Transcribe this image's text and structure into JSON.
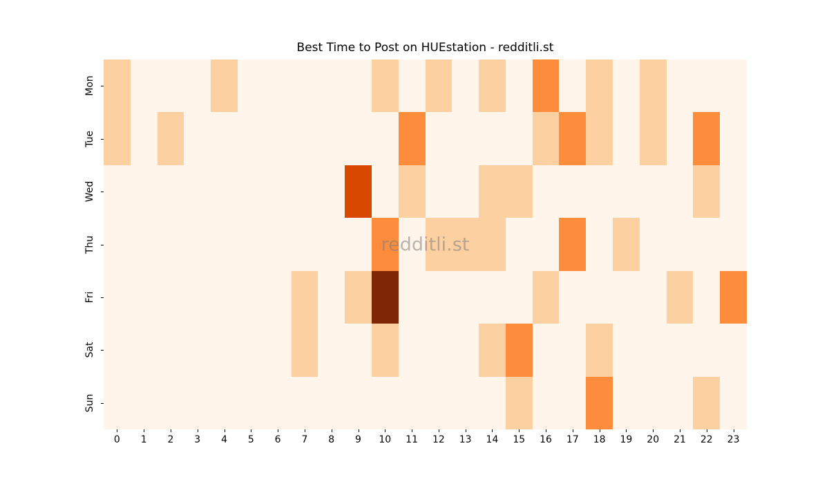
{
  "figure": {
    "title": "Best Time to Post on HUEstation - redditli.st",
    "watermark": "redditli.st",
    "background_color": "#ffffff"
  },
  "chart_data": {
    "type": "heatmap",
    "title": "Best Time to Post on HUEstation - redditli.st",
    "xlabel": "",
    "ylabel": "",
    "grid": false,
    "legend": "none",
    "colormap": "Oranges",
    "value_range": [
      0,
      4
    ],
    "level_colors": [
      "#FFF5EB",
      "#FDD0A2",
      "#FD8D3C",
      "#D94801",
      "#7F2704"
    ],
    "x_tick_labels": [
      "0",
      "1",
      "2",
      "3",
      "4",
      "5",
      "6",
      "7",
      "8",
      "9",
      "10",
      "11",
      "12",
      "13",
      "14",
      "15",
      "16",
      "17",
      "18",
      "19",
      "20",
      "21",
      "22",
      "23"
    ],
    "y_tick_labels": [
      "Mon",
      "Tue",
      "Wed",
      "Thu",
      "Fri",
      "Sat",
      "Sun"
    ],
    "values": [
      [
        1,
        0,
        0,
        0,
        1,
        0,
        0,
        0,
        0,
        0,
        1,
        0,
        1,
        0,
        1,
        0,
        2,
        0,
        1,
        0,
        1,
        0,
        0,
        0
      ],
      [
        1,
        0,
        1,
        0,
        0,
        0,
        0,
        0,
        0,
        0,
        0,
        2,
        0,
        0,
        0,
        0,
        1,
        2,
        1,
        0,
        1,
        0,
        2,
        0
      ],
      [
        0,
        0,
        0,
        0,
        0,
        0,
        0,
        0,
        0,
        3,
        0,
        1,
        0,
        0,
        1,
        1,
        0,
        0,
        0,
        0,
        0,
        0,
        1,
        0
      ],
      [
        0,
        0,
        0,
        0,
        0,
        0,
        0,
        0,
        0,
        0,
        2,
        0,
        1,
        1,
        1,
        0,
        0,
        2,
        0,
        1,
        0,
        0,
        0,
        0
      ],
      [
        0,
        0,
        0,
        0,
        0,
        0,
        0,
        1,
        0,
        1,
        4,
        0,
        0,
        0,
        0,
        0,
        1,
        0,
        0,
        0,
        0,
        1,
        0,
        2
      ],
      [
        0,
        0,
        0,
        0,
        0,
        0,
        0,
        1,
        0,
        0,
        1,
        0,
        0,
        0,
        1,
        2,
        0,
        0,
        1,
        0,
        0,
        0,
        0,
        0
      ],
      [
        0,
        0,
        0,
        0,
        0,
        0,
        0,
        0,
        0,
        0,
        0,
        0,
        0,
        0,
        0,
        1,
        0,
        0,
        2,
        0,
        0,
        0,
        1,
        0
      ]
    ]
  }
}
